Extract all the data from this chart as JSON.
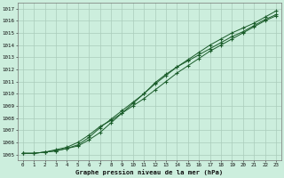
{
  "title": "Graphe pression niveau de la mer (hPa)",
  "bg_color": "#cceedd",
  "grid_color": "#aaccbb",
  "line_color": "#1a5c2a",
  "xlabel": "Graphe pression niveau de la mer (hPa)",
  "ylim": [
    1004.5,
    1017.5
  ],
  "xlim": [
    -0.5,
    23.5
  ],
  "yticks": [
    1005,
    1006,
    1007,
    1008,
    1009,
    1010,
    1011,
    1012,
    1013,
    1014,
    1015,
    1016,
    1017
  ],
  "xticks": [
    0,
    1,
    2,
    3,
    4,
    5,
    6,
    7,
    8,
    9,
    10,
    11,
    12,
    13,
    14,
    15,
    16,
    17,
    18,
    19,
    20,
    21,
    22,
    23
  ],
  "series1": [
    1005.1,
    1005.1,
    1005.2,
    1005.3,
    1005.5,
    1005.7,
    1006.2,
    1006.8,
    1007.6,
    1008.4,
    1009.2,
    1010.0,
    1010.8,
    1011.5,
    1012.2,
    1012.8,
    1013.4,
    1014.0,
    1014.5,
    1015.0,
    1015.4,
    1015.8,
    1016.3,
    1016.8
  ],
  "series2": [
    1005.1,
    1005.1,
    1005.2,
    1005.3,
    1005.5,
    1005.8,
    1006.4,
    1007.2,
    1007.9,
    1008.6,
    1009.3,
    1010.0,
    1010.9,
    1011.6,
    1012.2,
    1012.7,
    1013.2,
    1013.7,
    1014.2,
    1014.7,
    1015.1,
    1015.6,
    1016.1,
    1016.5
  ],
  "series3": [
    1005.1,
    1005.1,
    1005.2,
    1005.4,
    1005.6,
    1006.0,
    1006.6,
    1007.3,
    1007.8,
    1008.4,
    1009.0,
    1009.6,
    1010.3,
    1011.0,
    1011.7,
    1012.3,
    1012.9,
    1013.5,
    1014.0,
    1014.5,
    1015.0,
    1015.5,
    1016.0,
    1016.4
  ]
}
